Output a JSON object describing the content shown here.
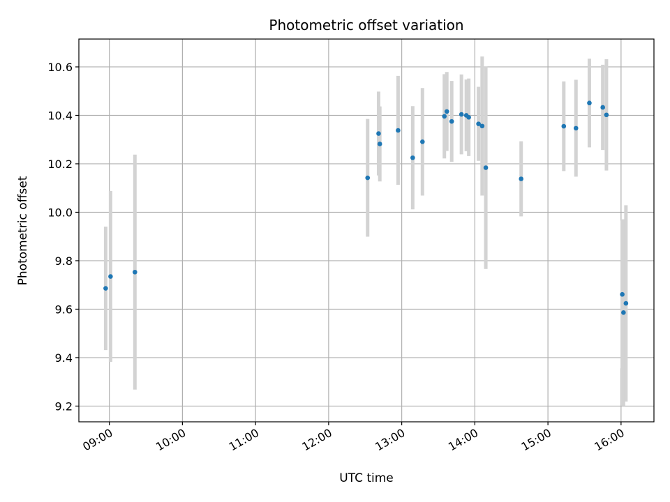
{
  "chart_data": {
    "type": "scatter",
    "title": "Photometric offset variation",
    "xlabel": "UTC time",
    "ylabel": "Photometric offset",
    "grid": true,
    "xlim": [
      "08:35",
      "16:27"
    ],
    "ylim": [
      9.135,
      10.715
    ],
    "x_ticks": [
      "09:00",
      "10:00",
      "11:00",
      "12:00",
      "13:00",
      "14:00",
      "15:00",
      "16:00"
    ],
    "y_ticks": [
      "9.2",
      "9.4",
      "9.6",
      "9.8",
      "10.0",
      "10.2",
      "10.4",
      "10.6"
    ],
    "colors": {
      "point": "#1f77b4",
      "errorbar": "#d3d3d3",
      "grid": "#b0b0b0"
    },
    "points": [
      {
        "time": "08:57",
        "y": 9.686,
        "yerr": 0.255
      },
      {
        "time": "09:01",
        "y": 9.735,
        "yerr": 0.353
      },
      {
        "time": "09:21",
        "y": 9.753,
        "yerr": 0.485
      },
      {
        "time": "12:32",
        "y": 10.142,
        "yerr": 0.243
      },
      {
        "time": "12:41",
        "y": 10.325,
        "yerr": 0.173
      },
      {
        "time": "12:42",
        "y": 10.282,
        "yerr": 0.155
      },
      {
        "time": "12:57",
        "y": 10.338,
        "yerr": 0.225
      },
      {
        "time": "13:09",
        "y": 10.225,
        "yerr": 0.213
      },
      {
        "time": "13:17",
        "y": 10.291,
        "yerr": 0.222
      },
      {
        "time": "13:35",
        "y": 10.396,
        "yerr": 0.174
      },
      {
        "time": "13:37",
        "y": 10.416,
        "yerr": 0.163
      },
      {
        "time": "13:41",
        "y": 10.375,
        "yerr": 0.167
      },
      {
        "time": "13:49",
        "y": 10.404,
        "yerr": 0.165
      },
      {
        "time": "13:53",
        "y": 10.4,
        "yerr": 0.148
      },
      {
        "time": "13:55",
        "y": 10.392,
        "yerr": 0.16
      },
      {
        "time": "14:03",
        "y": 10.365,
        "yerr": 0.153
      },
      {
        "time": "14:06",
        "y": 10.356,
        "yerr": 0.287
      },
      {
        "time": "14:09",
        "y": 10.184,
        "yerr": 0.418
      },
      {
        "time": "14:38",
        "y": 10.138,
        "yerr": 0.155
      },
      {
        "time": "15:13",
        "y": 10.355,
        "yerr": 0.185
      },
      {
        "time": "15:23",
        "y": 10.347,
        "yerr": 0.2
      },
      {
        "time": "15:34",
        "y": 10.451,
        "yerr": 0.183
      },
      {
        "time": "15:45",
        "y": 10.433,
        "yerr": 0.176
      },
      {
        "time": "15:48",
        "y": 10.402,
        "yerr": 0.23
      },
      {
        "time": "16:01",
        "y": 9.661,
        "yerr": 0.305
      },
      {
        "time": "16:02",
        "y": 9.586,
        "yerr": 0.385
      },
      {
        "time": "16:04",
        "y": 9.624,
        "yerr": 0.405
      }
    ]
  }
}
